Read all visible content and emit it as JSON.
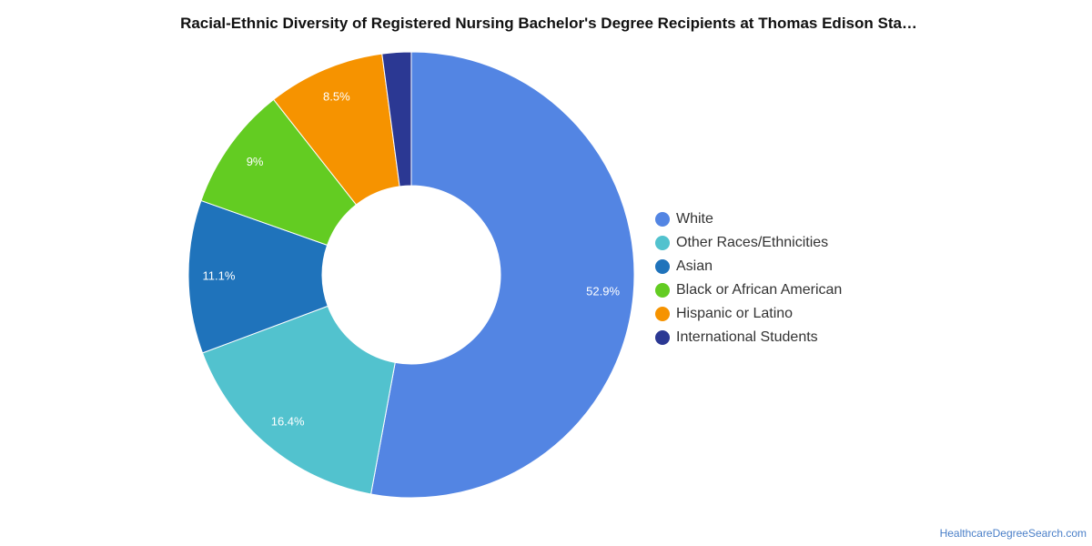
{
  "chart_data": {
    "type": "pie",
    "title": "Racial-Ethnic Diversity of Registered Nursing Bachelor's Degree Recipients at Thomas Edison Sta…",
    "donut": true,
    "legend_position": "right",
    "categories": [
      "White",
      "Other Races/Ethnicities",
      "Asian",
      "Black or African American",
      "Hispanic or Latino",
      "International Students"
    ],
    "values": [
      52.9,
      16.4,
      11.1,
      9,
      8.5,
      2.1
    ],
    "labels": [
      "52.9%",
      "16.4%",
      "11.1%",
      "9%",
      "8.5%",
      ""
    ],
    "colors": [
      "#5385e3",
      "#52c2ce",
      "#1f73bb",
      "#63cc22",
      "#f69300",
      "#2b3893"
    ]
  },
  "footer": {
    "source_link": "HealthcareDegreeSearch.com"
  }
}
